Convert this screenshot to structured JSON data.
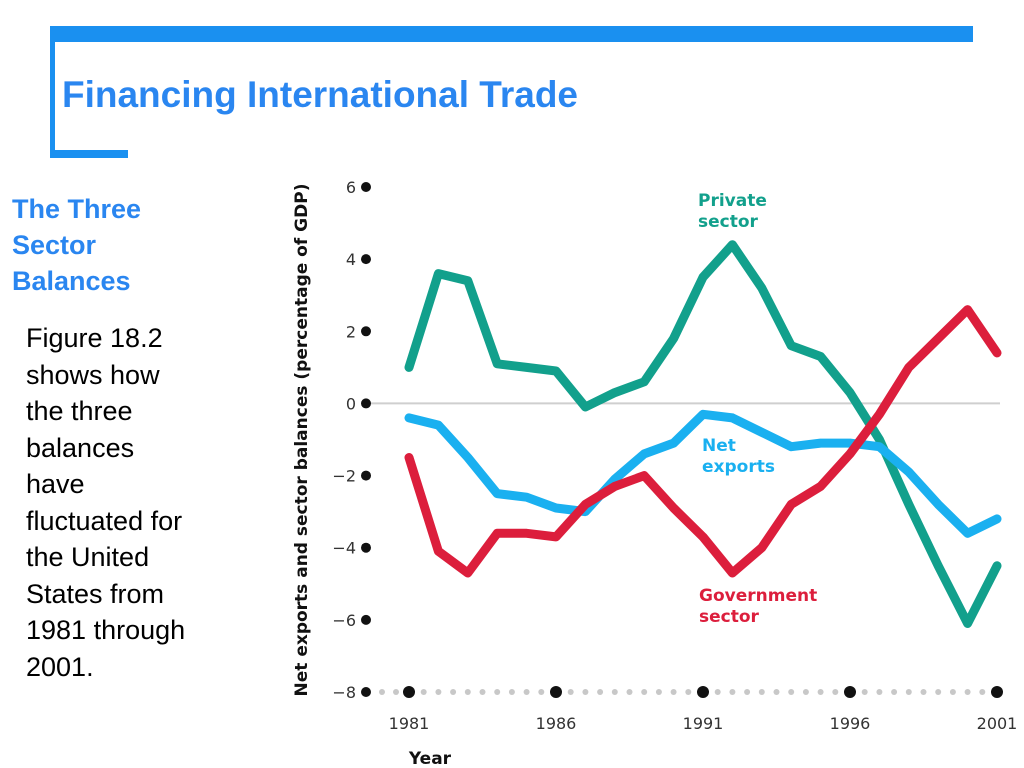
{
  "slide": {
    "title": "Financing International Trade",
    "subtitle": "The Three\nSector\nBalances",
    "body": "Figure 18.2\nshows how\nthe three\nbalances\nhave\nfluctuated for\nthe United\nStates from\n1981 through\n2001."
  },
  "colors": {
    "accent": "#1a90f0",
    "private": "#12a08c",
    "net_exports": "#1ab0f0",
    "government": "#dc1e3c"
  },
  "chart_data": {
    "type": "line",
    "xlabel": "Year",
    "ylabel": "Net exports and sector balances (percentage of GDP)",
    "xlim": [
      1981,
      2001
    ],
    "ylim": [
      -8,
      6
    ],
    "x_ticks": [
      "1981",
      "1986",
      "1991",
      "1996",
      "2001"
    ],
    "y_ticks": [
      "6",
      "4",
      "2",
      "0",
      "−2",
      "−4",
      "−6",
      "−8"
    ],
    "x": [
      1981,
      1982,
      1983,
      1984,
      1985,
      1986,
      1987,
      1988,
      1989,
      1990,
      1991,
      1992,
      1993,
      1994,
      1995,
      1996,
      1997,
      1998,
      1999,
      2000,
      2001
    ],
    "series": [
      {
        "name": "Private sector",
        "color": "#12a08c",
        "values": [
          1.0,
          3.6,
          3.4,
          1.1,
          1.0,
          0.9,
          -0.1,
          0.3,
          0.6,
          1.8,
          3.5,
          4.4,
          3.2,
          1.6,
          1.3,
          0.3,
          -1.0,
          -2.8,
          -4.5,
          -6.1,
          -4.5
        ]
      },
      {
        "name": "Net exports",
        "color": "#1ab0f0",
        "values": [
          -0.4,
          -0.6,
          -1.5,
          -2.5,
          -2.6,
          -2.9,
          -3.0,
          -2.1,
          -1.4,
          -1.1,
          -0.3,
          -0.4,
          -0.8,
          -1.2,
          -1.1,
          -1.1,
          -1.2,
          -1.9,
          -2.8,
          -3.6,
          -3.2
        ]
      },
      {
        "name": "Government sector",
        "color": "#dc1e3c",
        "values": [
          -1.5,
          -4.1,
          -4.7,
          -3.6,
          -3.6,
          -3.7,
          -2.8,
          -2.3,
          -2.0,
          -2.9,
          -3.7,
          -4.7,
          -4.0,
          -2.8,
          -2.3,
          -1.4,
          -0.3,
          1.0,
          1.8,
          2.6,
          1.4
        ]
      }
    ],
    "series_labels": [
      {
        "text": "Private\nsector",
        "series": 0
      },
      {
        "text": "Net\nexports",
        "series": 1
      },
      {
        "text": "Government\nsector",
        "series": 2
      }
    ],
    "zero_line": true
  }
}
